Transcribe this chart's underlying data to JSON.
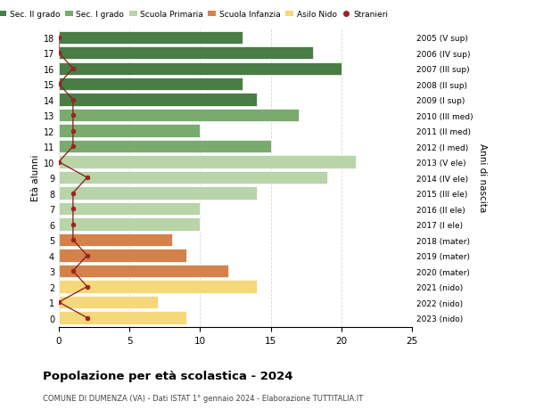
{
  "ages": [
    18,
    17,
    16,
    15,
    14,
    13,
    12,
    11,
    10,
    9,
    8,
    7,
    6,
    5,
    4,
    3,
    2,
    1,
    0
  ],
  "right_labels": [
    "2005 (V sup)",
    "2006 (IV sup)",
    "2007 (III sup)",
    "2008 (II sup)",
    "2009 (I sup)",
    "2010 (III med)",
    "2011 (II med)",
    "2012 (I med)",
    "2013 (V ele)",
    "2014 (IV ele)",
    "2015 (III ele)",
    "2016 (II ele)",
    "2017 (I ele)",
    "2018 (mater)",
    "2019 (mater)",
    "2020 (mater)",
    "2021 (nido)",
    "2022 (nido)",
    "2023 (nido)"
  ],
  "bar_values": [
    13,
    18,
    20,
    13,
    14,
    17,
    10,
    15,
    21,
    19,
    14,
    10,
    10,
    8,
    9,
    12,
    14,
    7,
    9
  ],
  "bar_colors": [
    "#4a7c45",
    "#4a7c45",
    "#4a7c45",
    "#4a7c45",
    "#4a7c45",
    "#7aab6e",
    "#7aab6e",
    "#7aab6e",
    "#b8d4a8",
    "#b8d4a8",
    "#b8d4a8",
    "#b8d4a8",
    "#b8d4a8",
    "#d4824a",
    "#d4824a",
    "#d4824a",
    "#f5d87a",
    "#f5d87a",
    "#f5d87a"
  ],
  "stranieri_values": [
    0,
    0,
    1,
    0,
    1,
    1,
    1,
    1,
    0,
    2,
    1,
    1,
    1,
    1,
    2,
    1,
    2,
    0,
    2
  ],
  "legend_labels": [
    "Sec. II grado",
    "Sec. I grado",
    "Scuola Primaria",
    "Scuola Infanzia",
    "Asilo Nido",
    "Stranieri"
  ],
  "legend_colors": [
    "#4a7c45",
    "#7aab6e",
    "#b8d4a8",
    "#d4824a",
    "#f5d87a",
    "#a02020"
  ],
  "ylabel": "Età alunni",
  "right_ylabel": "Anni di nascita",
  "title": "Popolazione per età scolastica - 2024",
  "subtitle": "COMUNE DI DUMENZA (VA) - Dati ISTAT 1° gennaio 2024 - Elaborazione TUTTITALIA.IT",
  "xlim": [
    0,
    25
  ],
  "xticks": [
    0,
    5,
    10,
    15,
    20,
    25
  ],
  "background_color": "#ffffff",
  "grid_color": "#cccccc"
}
